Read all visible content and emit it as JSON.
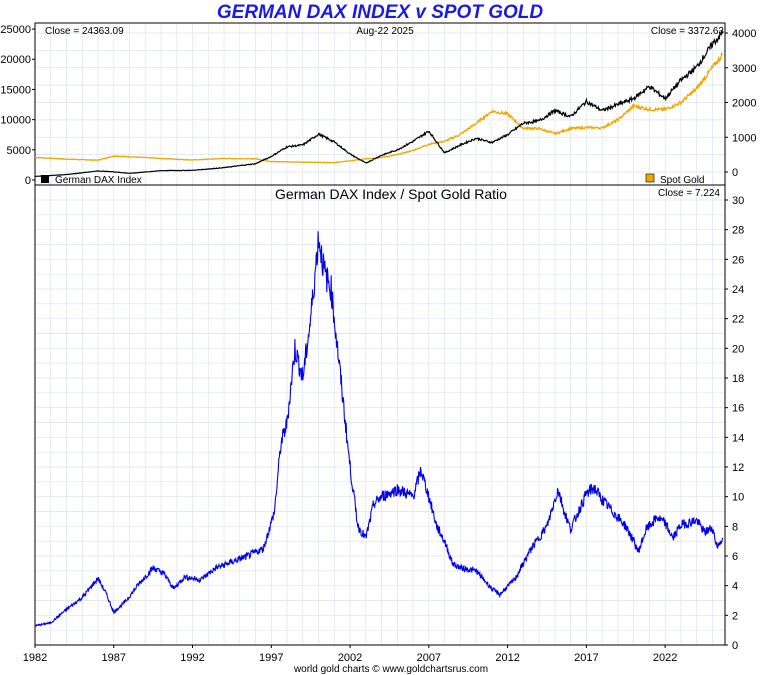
{
  "title": "GERMAN DAX INDEX v SPOT GOLD",
  "footer": "world gold charts © www.goldchartsrus.com",
  "colors": {
    "dax": "#000000",
    "gold": "#f0a800",
    "ratio": "#0000ee",
    "grid": "#dde3ee"
  },
  "chart_data": [
    {
      "type": "line",
      "date_label": "Aug-22  2025",
      "left_close": "Close = 24363.09",
      "right_close": "Close = 3372.63",
      "left_axis": {
        "ylim": [
          0,
          26000
        ],
        "ticks": [
          0,
          5000,
          10000,
          15000,
          20000,
          25000
        ]
      },
      "right_axis": {
        "ylim": [
          0,
          4000
        ],
        "ticks": [
          0,
          1000,
          2000,
          3000,
          4000
        ]
      },
      "x": [
        1982,
        1984,
        1986,
        1987,
        1988,
        1990,
        1992,
        1994,
        1996,
        1997,
        1998,
        1999,
        2000,
        2001,
        2002,
        2003,
        2004,
        2005,
        2006,
        2007,
        2008,
        2009,
        2010,
        2011,
        2012,
        2013,
        2014,
        2015,
        2016,
        2017,
        2018,
        2019,
        2020,
        2021,
        2022,
        2023,
        2024,
        2025,
        2025.64
      ],
      "series": [
        {
          "name": "German DAX Index",
          "axis": "left",
          "values": [
            600,
            900,
            1500,
            1350,
            1100,
            1550,
            1600,
            2050,
            2700,
            3900,
            5500,
            5800,
            7600,
            6300,
            4300,
            2800,
            4100,
            5000,
            6400,
            8100,
            4500,
            5800,
            6900,
            6200,
            7500,
            9400,
            9800,
            11500,
            10500,
            13000,
            11500,
            12500,
            13500,
            15500,
            13500,
            16500,
            18700,
            22500,
            24363
          ]
        },
        {
          "name": "Spot Gold",
          "axis": "right",
          "values": [
            420,
            370,
            340,
            460,
            440,
            390,
            345,
            390,
            380,
            300,
            295,
            280,
            280,
            270,
            320,
            380,
            420,
            500,
            620,
            800,
            880,
            1080,
            1400,
            1750,
            1670,
            1260,
            1250,
            1100,
            1250,
            1280,
            1270,
            1500,
            1900,
            1800,
            1800,
            2000,
            2400,
            3000,
            3372
          ]
        }
      ],
      "legend_left": "German DAX Index",
      "legend_right": "Spot Gold"
    },
    {
      "type": "line",
      "title": "German DAX Index  /  Spot Gold Ratio",
      "close": "Close = 7.224",
      "ylim": [
        0,
        30
      ],
      "yticks": [
        0,
        2,
        4,
        6,
        8,
        10,
        12,
        14,
        16,
        18,
        20,
        22,
        24,
        26,
        28,
        30
      ],
      "xlim": [
        1982,
        2025.8
      ],
      "xticks": [
        1982,
        1987,
        1992,
        1997,
        2002,
        2007,
        2012,
        2017,
        2022
      ],
      "x": [
        1982,
        1983,
        1984,
        1985,
        1986,
        1986.5,
        1987,
        1987.8,
        1988.5,
        1989.5,
        1990.2,
        1990.8,
        1991.5,
        1992.5,
        1993.5,
        1994.5,
        1995.5,
        1996.5,
        1997.2,
        1997.6,
        1998,
        1998.5,
        1999,
        1999.5,
        2000,
        2000.4,
        2000.8,
        2001.2,
        2001.6,
        2002,
        2002.5,
        2003,
        2003.5,
        2004,
        2005,
        2006,
        2006.5,
        2007,
        2007.5,
        2008,
        2008.5,
        2009,
        2010,
        2011,
        2011.5,
        2012.5,
        2013.5,
        2014.5,
        2015.2,
        2015.6,
        2016,
        2016.5,
        2017,
        2017.5,
        2018,
        2018.5,
        2019,
        2019.5,
        2020,
        2020.3,
        2020.8,
        2021.5,
        2022,
        2022.5,
        2023,
        2024,
        2024.5,
        2025,
        2025.3,
        2025.64
      ],
      "values": [
        1.3,
        1.5,
        2.4,
        3.2,
        4.5,
        3.5,
        2.2,
        3.0,
        4.0,
        5.2,
        4.8,
        3.8,
        4.6,
        4.4,
        5.2,
        5.6,
        6.0,
        6.5,
        9.0,
        13.5,
        15.0,
        20.0,
        18.0,
        22.0,
        27.5,
        25.0,
        24.0,
        20.0,
        16.0,
        12.0,
        8.0,
        7.2,
        9.5,
        10.0,
        10.5,
        10.0,
        11.8,
        10.0,
        8.0,
        7.0,
        5.5,
        5.2,
        5.0,
        3.8,
        3.4,
        4.5,
        6.5,
        8.0,
        10.5,
        9.0,
        7.8,
        9.0,
        10.2,
        10.6,
        9.8,
        9.2,
        8.6,
        8.0,
        7.0,
        6.3,
        7.8,
        8.6,
        8.2,
        7.2,
        8.1,
        8.4,
        7.6,
        7.9,
        6.6,
        7.224
      ]
    }
  ]
}
